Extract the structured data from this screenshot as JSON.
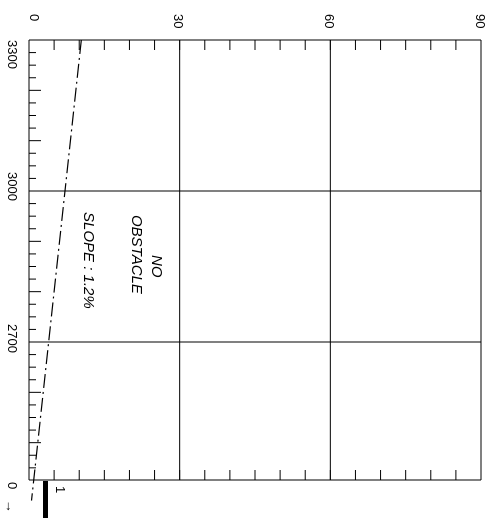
{
  "chart_data": {
    "type": "line",
    "title": "",
    "xlabel": "",
    "ylabel": "",
    "x_axis": {
      "ticks": [
        3300,
        3000,
        2700,
        0
      ],
      "minor_step": 25,
      "arrow": "→"
    },
    "y_axis": {
      "ticks": [
        0,
        30,
        60,
        90
      ],
      "ylim": [
        0,
        90
      ]
    },
    "series": [
      {
        "style": "dash-dot",
        "points": [
          {
            "x": 3400,
            "y": 11.5
          },
          {
            "x": 2385,
            "y": 0.5
          }
        ]
      }
    ],
    "annotations": {
      "obstacle_line1": "NO",
      "obstacle_line2": "OBSTACLE",
      "slope": "SLOPE : 1.2%",
      "marker": "1"
    },
    "grid": true
  }
}
